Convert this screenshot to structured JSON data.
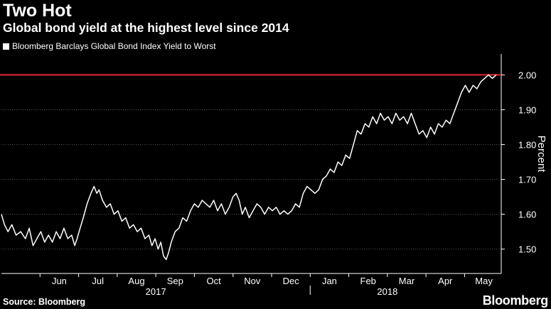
{
  "header": {
    "title": "Two Hot",
    "subtitle": "Global bond yield at the highest level since 2014"
  },
  "footer": {
    "source": "Source: Bloomberg",
    "brand": "Bloomberg"
  },
  "colors": {
    "background": "#000000",
    "series_line": "#ffffff",
    "reference_line": "#e8262f",
    "gridline": "#555555"
  },
  "chart_data": {
    "type": "line",
    "title": "Two Hot",
    "subtitle": "Global bond yield at the highest level since 2014",
    "xlabel": "",
    "ylabel": "Percent",
    "x_unit": "months since May 1, 2017",
    "xlim": [
      0.0,
      12.95
    ],
    "ylim": [
      1.43,
      2.06
    ],
    "yticks": [
      1.5,
      1.6,
      1.7,
      1.8,
      1.9,
      2.0
    ],
    "ytick_labels": [
      "1.50",
      "1.60",
      "1.70",
      "1.80",
      "1.90",
      "2.00"
    ],
    "month_ticks": [
      {
        "label": "Jun",
        "at": 1.5
      },
      {
        "label": "Jul",
        "at": 2.5
      },
      {
        "label": "Aug",
        "at": 3.5
      },
      {
        "label": "Sep",
        "at": 4.5
      },
      {
        "label": "Oct",
        "at": 5.5
      },
      {
        "label": "Nov",
        "at": 6.5
      },
      {
        "label": "Dec",
        "at": 7.5
      },
      {
        "label": "Jan",
        "at": 8.5
      },
      {
        "label": "Feb",
        "at": 9.5
      },
      {
        "label": "Mar",
        "at": 10.5
      },
      {
        "label": "Apr",
        "at": 11.5
      },
      {
        "label": "May",
        "at": 12.5
      }
    ],
    "year_labels": [
      {
        "label": "2017",
        "at": 4.0
      },
      {
        "label": "2018",
        "at": 10.0
      }
    ],
    "year_divider_at": 8.0,
    "reference_line": {
      "y": 2.0
    },
    "grid": true,
    "legend_position": "top-left",
    "series": [
      {
        "name": "Bloomberg Barclays Global Bond Index Yield to Worst",
        "points": [
          [
            0.0,
            1.6
          ],
          [
            0.08,
            1.57
          ],
          [
            0.17,
            1.55
          ],
          [
            0.27,
            1.57
          ],
          [
            0.38,
            1.54
          ],
          [
            0.5,
            1.55
          ],
          [
            0.62,
            1.53
          ],
          [
            0.72,
            1.56
          ],
          [
            0.82,
            1.51
          ],
          [
            0.92,
            1.53
          ],
          [
            1.02,
            1.55
          ],
          [
            1.12,
            1.52
          ],
          [
            1.22,
            1.54
          ],
          [
            1.32,
            1.52
          ],
          [
            1.42,
            1.55
          ],
          [
            1.52,
            1.53
          ],
          [
            1.62,
            1.56
          ],
          [
            1.72,
            1.53
          ],
          [
            1.82,
            1.54
          ],
          [
            1.9,
            1.51
          ],
          [
            1.96,
            1.53
          ],
          [
            2.04,
            1.56
          ],
          [
            2.12,
            1.59
          ],
          [
            2.22,
            1.63
          ],
          [
            2.32,
            1.66
          ],
          [
            2.4,
            1.68
          ],
          [
            2.47,
            1.66
          ],
          [
            2.53,
            1.67
          ],
          [
            2.62,
            1.64
          ],
          [
            2.72,
            1.62
          ],
          [
            2.82,
            1.63
          ],
          [
            2.92,
            1.6
          ],
          [
            3.02,
            1.61
          ],
          [
            3.12,
            1.58
          ],
          [
            3.22,
            1.59
          ],
          [
            3.32,
            1.56
          ],
          [
            3.42,
            1.57
          ],
          [
            3.52,
            1.55
          ],
          [
            3.62,
            1.56
          ],
          [
            3.72,
            1.53
          ],
          [
            3.82,
            1.54
          ],
          [
            3.9,
            1.51
          ],
          [
            3.98,
            1.53
          ],
          [
            4.06,
            1.5
          ],
          [
            4.13,
            1.52
          ],
          [
            4.2,
            1.48
          ],
          [
            4.27,
            1.47
          ],
          [
            4.33,
            1.49
          ],
          [
            4.4,
            1.52
          ],
          [
            4.5,
            1.55
          ],
          [
            4.6,
            1.56
          ],
          [
            4.7,
            1.59
          ],
          [
            4.8,
            1.58
          ],
          [
            4.9,
            1.61
          ],
          [
            5.0,
            1.63
          ],
          [
            5.1,
            1.62
          ],
          [
            5.2,
            1.64
          ],
          [
            5.3,
            1.63
          ],
          [
            5.4,
            1.62
          ],
          [
            5.5,
            1.64
          ],
          [
            5.6,
            1.61
          ],
          [
            5.7,
            1.63
          ],
          [
            5.8,
            1.6
          ],
          [
            5.9,
            1.62
          ],
          [
            6.0,
            1.65
          ],
          [
            6.08,
            1.66
          ],
          [
            6.16,
            1.64
          ],
          [
            6.24,
            1.6
          ],
          [
            6.32,
            1.62
          ],
          [
            6.42,
            1.59
          ],
          [
            6.52,
            1.61
          ],
          [
            6.62,
            1.63
          ],
          [
            6.72,
            1.62
          ],
          [
            6.82,
            1.6
          ],
          [
            6.92,
            1.62
          ],
          [
            7.02,
            1.61
          ],
          [
            7.12,
            1.62
          ],
          [
            7.22,
            1.6
          ],
          [
            7.32,
            1.61
          ],
          [
            7.42,
            1.6
          ],
          [
            7.52,
            1.61
          ],
          [
            7.62,
            1.63
          ],
          [
            7.72,
            1.62
          ],
          [
            7.82,
            1.66
          ],
          [
            7.92,
            1.68
          ],
          [
            8.02,
            1.67
          ],
          [
            8.12,
            1.66
          ],
          [
            8.22,
            1.67
          ],
          [
            8.32,
            1.7
          ],
          [
            8.42,
            1.71
          ],
          [
            8.52,
            1.73
          ],
          [
            8.62,
            1.72
          ],
          [
            8.72,
            1.75
          ],
          [
            8.82,
            1.74
          ],
          [
            8.92,
            1.77
          ],
          [
            9.02,
            1.76
          ],
          [
            9.12,
            1.8
          ],
          [
            9.22,
            1.84
          ],
          [
            9.32,
            1.83
          ],
          [
            9.42,
            1.86
          ],
          [
            9.52,
            1.85
          ],
          [
            9.62,
            1.88
          ],
          [
            9.72,
            1.86
          ],
          [
            9.82,
            1.89
          ],
          [
            9.92,
            1.87
          ],
          [
            10.02,
            1.88
          ],
          [
            10.12,
            1.86
          ],
          [
            10.22,
            1.89
          ],
          [
            10.32,
            1.87
          ],
          [
            10.42,
            1.88
          ],
          [
            10.52,
            1.86
          ],
          [
            10.62,
            1.89
          ],
          [
            10.72,
            1.86
          ],
          [
            10.82,
            1.83
          ],
          [
            10.92,
            1.84
          ],
          [
            11.02,
            1.82
          ],
          [
            11.12,
            1.85
          ],
          [
            11.22,
            1.83
          ],
          [
            11.32,
            1.86
          ],
          [
            11.42,
            1.85
          ],
          [
            11.52,
            1.87
          ],
          [
            11.62,
            1.86
          ],
          [
            11.72,
            1.89
          ],
          [
            11.82,
            1.92
          ],
          [
            11.92,
            1.95
          ],
          [
            12.02,
            1.97
          ],
          [
            12.12,
            1.95
          ],
          [
            12.22,
            1.97
          ],
          [
            12.32,
            1.96
          ],
          [
            12.42,
            1.98
          ],
          [
            12.52,
            1.99
          ],
          [
            12.62,
            2.0
          ],
          [
            12.72,
            1.99
          ],
          [
            12.82,
            2.0
          ]
        ]
      }
    ]
  }
}
